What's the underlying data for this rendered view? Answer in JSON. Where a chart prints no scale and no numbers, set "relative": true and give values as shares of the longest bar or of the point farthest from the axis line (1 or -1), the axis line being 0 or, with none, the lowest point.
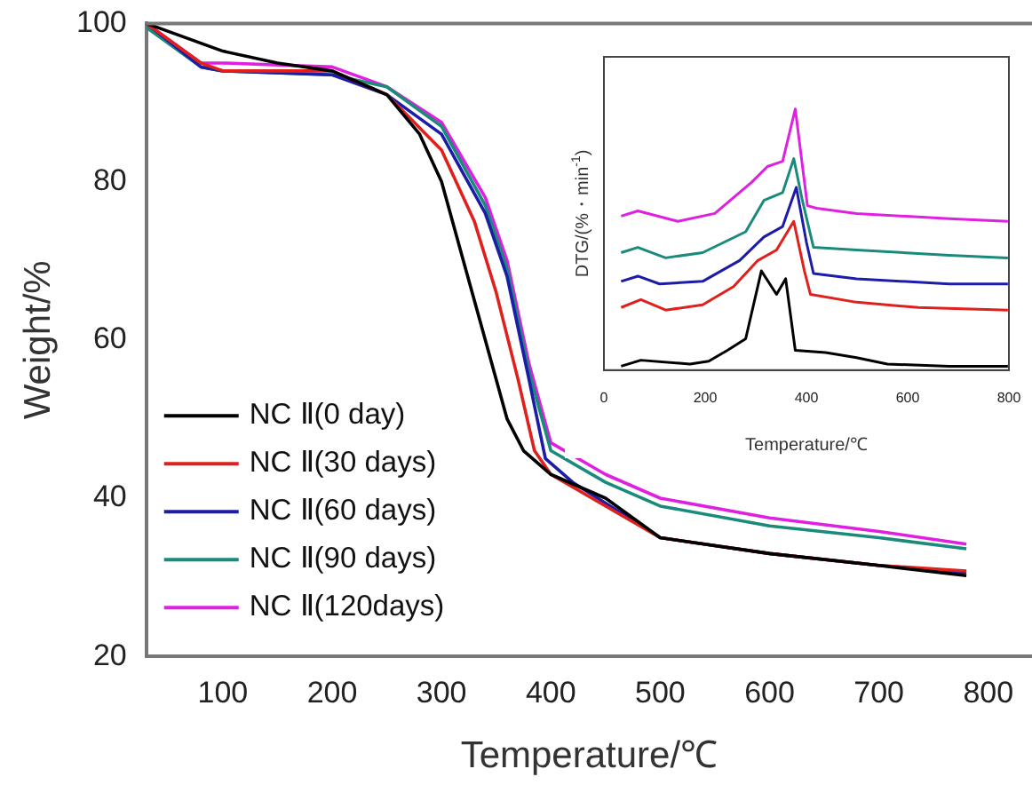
{
  "chart_data": [
    {
      "type": "line",
      "xlabel": "Temperature/℃",
      "ylabel": "Weight/%",
      "xlim": [
        30,
        840
      ],
      "ylim": [
        20,
        100
      ],
      "xticks": [
        100,
        200,
        300,
        400,
        500,
        600,
        700,
        800
      ],
      "yticks": [
        20,
        40,
        60,
        80,
        100
      ],
      "grid": false,
      "legend": "bottom left",
      "marker": "none",
      "line_style": "solid",
      "series": [
        {
          "name": "NC Ⅱ(0 day)",
          "color": "#000000",
          "x": [
            30,
            100,
            150,
            200,
            250,
            280,
            300,
            320,
            340,
            360,
            375,
            400,
            450,
            500,
            600,
            700,
            780
          ],
          "values": [
            100,
            96.5,
            95,
            94,
            91,
            86,
            80,
            70,
            60,
            50,
            46,
            43,
            40,
            35,
            33,
            31.5,
            30.2
          ]
        },
        {
          "name": "NC Ⅱ(30 days)",
          "color": "#e0201c",
          "x": [
            30,
            80,
            100,
            200,
            250,
            300,
            330,
            350,
            370,
            385,
            400,
            500,
            600,
            700,
            780
          ],
          "values": [
            100,
            95,
            94,
            94,
            91,
            84,
            75,
            66,
            55,
            46,
            43,
            35,
            33,
            31.5,
            30.8
          ]
        },
        {
          "name": "NC Ⅱ(60 days)",
          "color": "#1c1ca8",
          "x": [
            30,
            80,
            100,
            200,
            250,
            300,
            340,
            360,
            380,
            395,
            420,
            500,
            600,
            700,
            780
          ],
          "values": [
            100,
            94.5,
            94,
            93.5,
            91,
            86,
            76,
            68,
            55,
            45,
            42,
            35,
            33,
            31.5,
            30.6
          ]
        },
        {
          "name": "NC Ⅱ(90 days)",
          "color": "#1a8a7a",
          "x": [
            30,
            80,
            100,
            200,
            250,
            300,
            340,
            360,
            380,
            400,
            450,
            500,
            600,
            700,
            780
          ],
          "values": [
            99.5,
            94.5,
            94,
            93.5,
            92,
            87,
            77,
            69,
            56,
            46,
            42,
            39,
            36.5,
            35,
            33.6
          ]
        },
        {
          "name": "NC Ⅱ(120days)",
          "color": "#e020e0",
          "x": [
            30,
            80,
            100,
            200,
            250,
            300,
            340,
            360,
            380,
            400,
            450,
            500,
            600,
            700,
            780
          ],
          "values": [
            100,
            95,
            95,
            94.5,
            92,
            87.5,
            78,
            70,
            57,
            47,
            43,
            40,
            37.5,
            35.8,
            34.2
          ]
        }
      ]
    },
    {
      "type": "line",
      "xlabel": "Temperature/℃",
      "ylabel": "DTG/(%・min$^{-1}$)",
      "relative": true,
      "xlim": [
        0,
        800
      ],
      "xticks": [
        0,
        200,
        400,
        600,
        800
      ],
      "grid": false,
      "marker": "none",
      "line_style": "solid",
      "series": [
        {
          "color": "#000000",
          "x": [
            34,
            73,
            170,
            207,
            244,
            280,
            311,
            341,
            359,
            378,
            438,
            499,
            560,
            682,
            798
          ],
          "values": [
            0.015,
            0.038,
            0.023,
            0.034,
            0.076,
            0.12,
            0.38,
            0.29,
            0.35,
            0.076,
            0.067,
            0.048,
            0.023,
            0.015,
            0.015
          ]
        },
        {
          "color": "#e0201c",
          "x": [
            34,
            73,
            122,
            195,
            256,
            304,
            341,
            375,
            396,
            408,
            499,
            621,
            798
          ],
          "values": [
            0.24,
            0.27,
            0.23,
            0.25,
            0.32,
            0.42,
            0.46,
            0.57,
            0.38,
            0.29,
            0.26,
            0.24,
            0.23
          ]
        },
        {
          "color": "#1c1ca8",
          "x": [
            34,
            67,
            110,
            195,
            268,
            316,
            353,
            380,
            400,
            414,
            499,
            682,
            798
          ],
          "values": [
            0.34,
            0.36,
            0.33,
            0.34,
            0.42,
            0.51,
            0.55,
            0.7,
            0.49,
            0.37,
            0.35,
            0.33,
            0.33
          ]
        },
        {
          "color": "#1a8a7a",
          "x": [
            34,
            67,
            122,
            195,
            280,
            316,
            353,
            375,
            392,
            414,
            499,
            682,
            798
          ],
          "values": [
            0.45,
            0.47,
            0.43,
            0.45,
            0.53,
            0.65,
            0.68,
            0.81,
            0.65,
            0.47,
            0.46,
            0.44,
            0.43
          ]
        },
        {
          "color": "#e020e0",
          "x": [
            34,
            67,
            146,
            219,
            292,
            323,
            353,
            378,
            402,
            420,
            499,
            682,
            798
          ],
          "values": [
            0.59,
            0.61,
            0.57,
            0.6,
            0.72,
            0.78,
            0.8,
            1,
            0.63,
            0.62,
            0.6,
            0.58,
            0.57
          ]
        }
      ]
    }
  ]
}
